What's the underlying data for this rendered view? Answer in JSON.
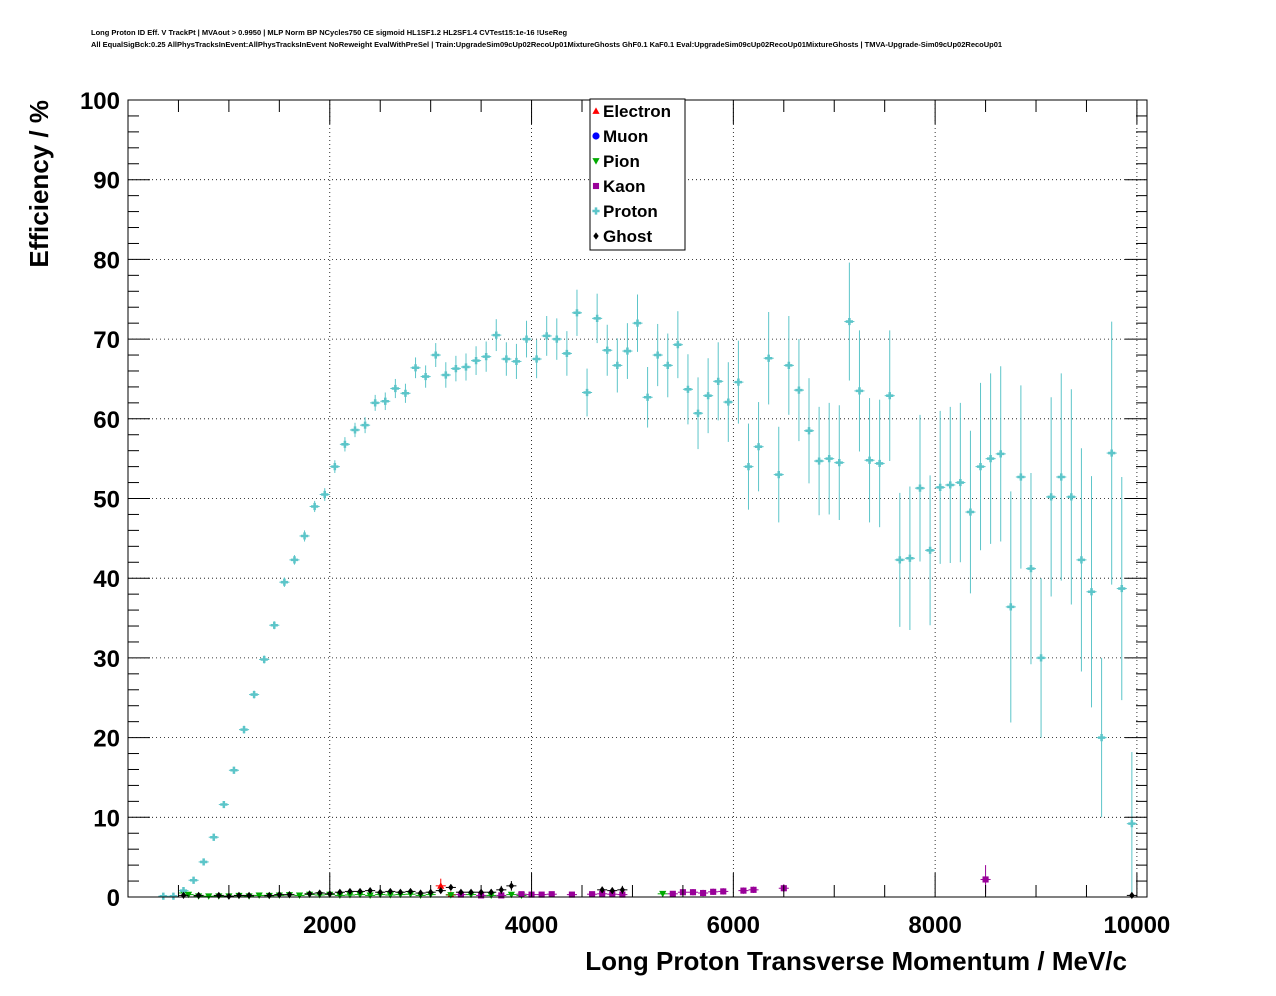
{
  "header": {
    "line1": "Long Proton ID Eff. V TrackPt | MVAout > 0.9950 | MLP Norm BP NCycles750 CE sigmoid HL1SF1.2 HL2SF1.4 CVTest15:1e-16 !UseReg",
    "line2": "All EqualSigBck:0.25 AllPhysTracksInEvent:AllPhysTracksInEvent NoReweight EvalWithPreSel | Train:UpgradeSim09cUp02RecoUp01MixtureGhosts GhF0.1 KaF0.1 Eval:UpgradeSim09cUp02RecoUp01MixtureGhosts | TMVA-Upgrade-Sim09cUp02RecoUp01"
  },
  "chart_data": {
    "type": "scatter",
    "title": "",
    "xlabel": "Long Proton Transverse Momentum / MeV/c",
    "ylabel": "Efficiency / %",
    "xlim": [
      0,
      10100
    ],
    "ylim": [
      0,
      100
    ],
    "xticks": [
      2000,
      4000,
      6000,
      8000,
      10000
    ],
    "yticks": [
      0,
      10,
      20,
      30,
      40,
      50,
      60,
      70,
      80,
      90,
      100
    ],
    "grid": true,
    "legend_position": "top-center",
    "series": [
      {
        "name": "Electron",
        "color": "#ff0000",
        "marker": "triangle-up",
        "points": [
          [
            3100,
            1.4,
            0.9
          ],
          [
            3200,
            0.3,
            0.3
          ]
        ]
      },
      {
        "name": "Muon",
        "color": "#0000ff",
        "marker": "circle",
        "points": []
      },
      {
        "name": "Pion",
        "color": "#00aa00",
        "marker": "triangle-down",
        "points": [
          [
            550,
            0.5,
            0.2
          ],
          [
            600,
            0.3,
            0.1
          ],
          [
            700,
            0.1,
            0.1
          ],
          [
            800,
            0.1,
            0.1
          ],
          [
            900,
            0.1,
            0.1
          ],
          [
            1000,
            0.1,
            0.1
          ],
          [
            1100,
            0.15,
            0.1
          ],
          [
            1200,
            0.1,
            0.1
          ],
          [
            1300,
            0.2,
            0.1
          ],
          [
            1400,
            0.15,
            0.1
          ],
          [
            1500,
            0.2,
            0.1
          ],
          [
            1600,
            0.25,
            0.1
          ],
          [
            1700,
            0.2,
            0.1
          ],
          [
            1800,
            0.3,
            0.1
          ],
          [
            1900,
            0.25,
            0.1
          ],
          [
            2000,
            0.3,
            0.15
          ],
          [
            2100,
            0.2,
            0.15
          ],
          [
            2200,
            0.25,
            0.15
          ],
          [
            2300,
            0.3,
            0.15
          ],
          [
            2400,
            0.2,
            0.15
          ],
          [
            2500,
            0.3,
            0.15
          ],
          [
            2600,
            0.25,
            0.15
          ],
          [
            2700,
            0.3,
            0.15
          ],
          [
            2800,
            0.35,
            0.2
          ],
          [
            2900,
            0.2,
            0.2
          ],
          [
            3000,
            0.3,
            0.2
          ],
          [
            3200,
            0.25,
            0.2
          ],
          [
            3400,
            0.3,
            0.2
          ],
          [
            3600,
            0.2,
            0.2
          ],
          [
            3800,
            0.3,
            0.3
          ],
          [
            3900,
            0.2,
            0.2
          ],
          [
            5300,
            0.4,
            0.3
          ]
        ]
      },
      {
        "name": "Kaon",
        "color": "#990099",
        "marker": "square",
        "points": [
          [
            3300,
            0.3,
            0.2
          ],
          [
            3500,
            0.2,
            0.2
          ],
          [
            3700,
            0.2,
            0.2
          ],
          [
            3900,
            0.35,
            0.2
          ],
          [
            4000,
            0.3,
            0.2
          ],
          [
            4100,
            0.3,
            0.2
          ],
          [
            4200,
            0.35,
            0.2
          ],
          [
            4400,
            0.3,
            0.2
          ],
          [
            4600,
            0.35,
            0.2
          ],
          [
            4700,
            0.4,
            0.3
          ],
          [
            4800,
            0.35,
            0.3
          ],
          [
            4900,
            0.3,
            0.3
          ],
          [
            5400,
            0.4,
            0.3
          ],
          [
            5500,
            0.6,
            0.4
          ],
          [
            5600,
            0.6,
            0.4
          ],
          [
            5700,
            0.5,
            0.4
          ],
          [
            5800,
            0.65,
            0.4
          ],
          [
            5900,
            0.7,
            0.4
          ],
          [
            6100,
            0.8,
            0.4
          ],
          [
            6200,
            0.9,
            0.4
          ],
          [
            6500,
            1.1,
            0.5
          ],
          [
            8500,
            2.2,
            1.8
          ]
        ]
      },
      {
        "name": "Proton",
        "color": "#5cc5c9",
        "marker": "cross",
        "points": [
          [
            350,
            0.1,
            0.1
          ],
          [
            450,
            0.1,
            0.1
          ],
          [
            550,
            0.8,
            0.2
          ],
          [
            650,
            2.1,
            0.3
          ],
          [
            750,
            4.4,
            0.3
          ],
          [
            850,
            7.5,
            0.4
          ],
          [
            950,
            11.6,
            0.4
          ],
          [
            1050,
            15.9,
            0.4
          ],
          [
            1150,
            21.0,
            0.5
          ],
          [
            1250,
            25.4,
            0.5
          ],
          [
            1350,
            29.8,
            0.5
          ],
          [
            1450,
            34.1,
            0.5
          ],
          [
            1550,
            39.5,
            0.6
          ],
          [
            1650,
            42.3,
            0.6
          ],
          [
            1750,
            45.3,
            0.7
          ],
          [
            1850,
            49.0,
            0.7
          ],
          [
            1950,
            50.5,
            0.8
          ],
          [
            2050,
            54.0,
            0.8
          ],
          [
            2150,
            56.8,
            0.9
          ],
          [
            2250,
            58.6,
            0.9
          ],
          [
            2350,
            59.2,
            1.0
          ],
          [
            2450,
            62.0,
            1.0
          ],
          [
            2550,
            62.2,
            1.1
          ],
          [
            2650,
            63.8,
            1.2
          ],
          [
            2750,
            63.2,
            1.2
          ],
          [
            2850,
            66.4,
            1.3
          ],
          [
            2950,
            65.3,
            1.4
          ],
          [
            3050,
            68.0,
            1.5
          ],
          [
            3150,
            65.5,
            1.6
          ],
          [
            3250,
            66.3,
            1.6
          ],
          [
            3350,
            66.5,
            1.7
          ],
          [
            3450,
            67.3,
            1.8
          ],
          [
            3550,
            67.8,
            1.9
          ],
          [
            3650,
            70.5,
            2.0
          ],
          [
            3750,
            67.5,
            2.1
          ],
          [
            3850,
            67.2,
            2.2
          ],
          [
            3950,
            70.0,
            2.3
          ],
          [
            4050,
            67.5,
            2.4
          ],
          [
            4150,
            70.4,
            2.5
          ],
          [
            4250,
            70.0,
            2.6
          ],
          [
            4350,
            68.2,
            2.8
          ],
          [
            4450,
            73.3,
            2.9
          ],
          [
            4550,
            63.3,
            3.0
          ],
          [
            4650,
            72.6,
            3.1
          ],
          [
            4750,
            68.6,
            3.2
          ],
          [
            4850,
            66.7,
            3.4
          ],
          [
            4950,
            68.5,
            3.5
          ],
          [
            5050,
            72.0,
            3.6
          ],
          [
            5150,
            62.7,
            3.8
          ],
          [
            5250,
            68.0,
            3.9
          ],
          [
            5350,
            66.7,
            4.0
          ],
          [
            5450,
            69.3,
            4.2
          ],
          [
            5550,
            63.7,
            4.4
          ],
          [
            5650,
            60.7,
            4.5
          ],
          [
            5750,
            62.9,
            4.7
          ],
          [
            5850,
            64.7,
            4.9
          ],
          [
            5950,
            62.1,
            5.0
          ],
          [
            6050,
            64.6,
            5.2
          ],
          [
            6150,
            54.0,
            5.4
          ],
          [
            6250,
            56.5,
            5.6
          ],
          [
            6350,
            67.6,
            5.8
          ],
          [
            6450,
            53.0,
            6.0
          ],
          [
            6550,
            66.7,
            6.2
          ],
          [
            6650,
            63.6,
            6.4
          ],
          [
            6750,
            58.5,
            6.6
          ],
          [
            6850,
            54.7,
            6.8
          ],
          [
            6950,
            55.0,
            7.0
          ],
          [
            7050,
            54.5,
            7.2
          ],
          [
            7150,
            72.2,
            7.4
          ],
          [
            7250,
            63.5,
            7.6
          ],
          [
            7350,
            54.8,
            7.8
          ],
          [
            7450,
            54.4,
            8.0
          ],
          [
            7550,
            62.9,
            8.2
          ],
          [
            7650,
            42.3,
            8.4
          ],
          [
            7750,
            42.5,
            9.0
          ],
          [
            7850,
            51.3,
            9.2
          ],
          [
            7950,
            43.5,
            9.4
          ],
          [
            8050,
            51.4,
            9.6
          ],
          [
            8150,
            51.7,
            9.8
          ],
          [
            8250,
            52.0,
            10.0
          ],
          [
            8350,
            48.3,
            10.2
          ],
          [
            8450,
            54.0,
            10.5
          ],
          [
            8550,
            55.0,
            10.7
          ],
          [
            8650,
            55.6,
            11.0
          ],
          [
            8750,
            36.4,
            14.5
          ],
          [
            8850,
            52.7,
            11.5
          ],
          [
            8950,
            41.2,
            12.0
          ],
          [
            9050,
            30.0,
            10.0
          ],
          [
            9150,
            50.2,
            12.5
          ],
          [
            9250,
            52.7,
            13.0
          ],
          [
            9350,
            50.2,
            13.5
          ],
          [
            9450,
            42.3,
            14.0
          ],
          [
            9550,
            38.3,
            14.5
          ],
          [
            9650,
            20.0,
            10.0
          ],
          [
            9750,
            55.7,
            16.5
          ],
          [
            9850,
            38.7,
            14.0
          ],
          [
            9950,
            9.2,
            9.0
          ]
        ]
      },
      {
        "name": "Ghost",
        "color": "#000000",
        "marker": "diamond",
        "points": [
          [
            550,
            0.2,
            0.1
          ],
          [
            700,
            0.2,
            0.1
          ],
          [
            900,
            0.2,
            0.1
          ],
          [
            1000,
            0.1,
            0.1
          ],
          [
            1100,
            0.2,
            0.1
          ],
          [
            1200,
            0.2,
            0.1
          ],
          [
            1400,
            0.2,
            0.1
          ],
          [
            1500,
            0.3,
            0.1
          ],
          [
            1600,
            0.3,
            0.1
          ],
          [
            1800,
            0.4,
            0.1
          ],
          [
            1900,
            0.5,
            0.2
          ],
          [
            2000,
            0.4,
            0.2
          ],
          [
            2100,
            0.6,
            0.2
          ],
          [
            2200,
            0.7,
            0.2
          ],
          [
            2300,
            0.7,
            0.2
          ],
          [
            2400,
            0.8,
            0.2
          ],
          [
            2500,
            0.6,
            0.2
          ],
          [
            2600,
            0.7,
            0.2
          ],
          [
            2700,
            0.6,
            0.2
          ],
          [
            2800,
            0.7,
            0.3
          ],
          [
            2900,
            0.5,
            0.3
          ],
          [
            3000,
            0.6,
            0.3
          ],
          [
            3100,
            0.8,
            0.3
          ],
          [
            3200,
            1.2,
            0.4
          ],
          [
            3300,
            0.6,
            0.3
          ],
          [
            3400,
            0.6,
            0.3
          ],
          [
            3500,
            0.6,
            0.4
          ],
          [
            3600,
            0.6,
            0.4
          ],
          [
            3700,
            0.9,
            0.5
          ],
          [
            3800,
            1.4,
            0.6
          ],
          [
            4700,
            0.9,
            0.4
          ],
          [
            4800,
            0.8,
            0.4
          ],
          [
            4900,
            0.9,
            0.5
          ],
          [
            9950,
            0.2,
            0.2
          ]
        ]
      }
    ]
  }
}
